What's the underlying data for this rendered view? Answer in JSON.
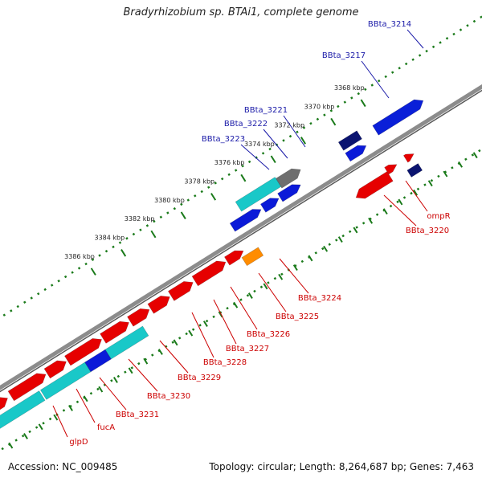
{
  "title": "Bradyrhizobium sp. BTAi1, complete genome",
  "footer": {
    "accession": "Accession: NC_009485",
    "stats": "Topology: circular; Length: 8,264,687 bp; Genes: 7,463"
  },
  "colors": {
    "backbone": "#8c8c8c",
    "tick": "#1a7a1a",
    "label_outer": "#1a1aa8",
    "label_inner": "#cc0000"
  },
  "ticks": [
    {
      "text": "3368 kbp"
    },
    {
      "text": "3370 kbp"
    },
    {
      "text": "3372 kbp"
    },
    {
      "text": "3374 kbp"
    },
    {
      "text": "3376 kbp"
    },
    {
      "text": "3378 kbp"
    },
    {
      "text": "3380 kbp"
    },
    {
      "text": "3382 kbp"
    },
    {
      "text": "3384 kbp"
    },
    {
      "text": "3386 kbp"
    }
  ],
  "outer_labels": [
    {
      "text": "BBta_3214"
    },
    {
      "text": "BBta_3217"
    },
    {
      "text": "BBta_3221"
    },
    {
      "text": "BBta_3222"
    },
    {
      "text": "BBta_3223"
    }
  ],
  "inner_labels": [
    {
      "text": "ompR"
    },
    {
      "text": "BBta_3220"
    },
    {
      "text": "BBta_3224"
    },
    {
      "text": "BBta_3225"
    },
    {
      "text": "BBta_3226"
    },
    {
      "text": "BBta_3227"
    },
    {
      "text": "BBta_3228"
    },
    {
      "text": "BBta_3229"
    },
    {
      "text": "BBta_3230"
    },
    {
      "text": "BBta_3231"
    },
    {
      "text": "fucA"
    },
    {
      "text": "glpD"
    }
  ]
}
